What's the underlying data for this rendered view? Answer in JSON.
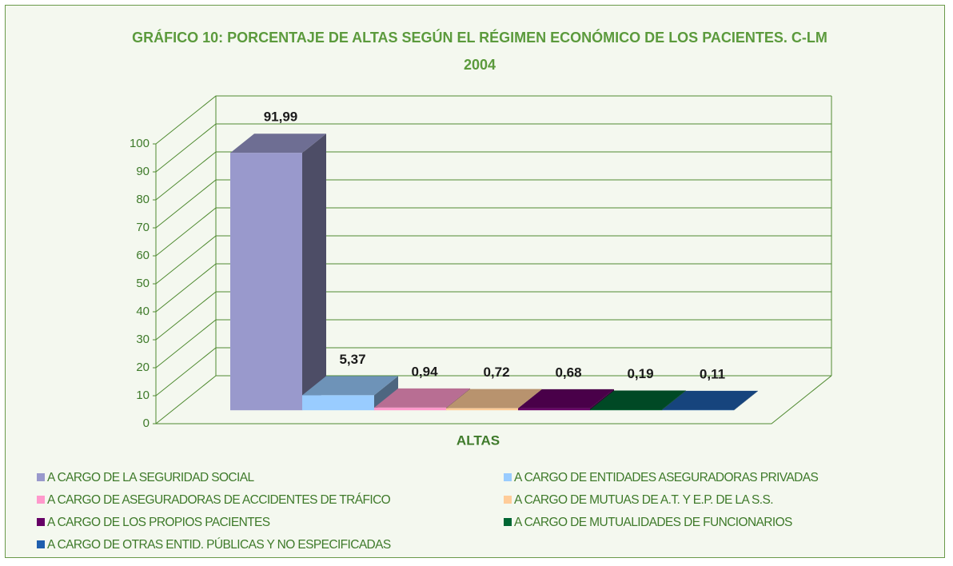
{
  "chart_data": {
    "type": "bar",
    "title": "GRÁFICO 10: PORCENTAJE DE ALTAS SEGÚN EL RÉGIMEN ECONÓMICO DE LOS PACIENTES. C-LM 2004",
    "categories": [
      "ALTAS"
    ],
    "series": [
      {
        "name": "A CARGO DE LA SEGURIDAD SOCIAL",
        "color": "#9999cc",
        "values": [
          91.99
        ],
        "value_labels": [
          "91,99"
        ]
      },
      {
        "name": "A CARGO DE ENTIDADES ASEGURADORAS PRIVADAS",
        "color": "#99ccff",
        "values": [
          5.37
        ],
        "value_labels": [
          "5,37"
        ]
      },
      {
        "name": "A CARGO DE ASEGURADORAS DE ACCIDENTES DE TRÁFICO",
        "color": "#ff99cc",
        "values": [
          0.94
        ],
        "value_labels": [
          "0,94"
        ]
      },
      {
        "name": "A CARGO DE MUTUAS  DE A.T. Y E.P. DE LA S.S.",
        "color": "#ffcc99",
        "values": [
          0.72
        ],
        "value_labels": [
          "0,72"
        ]
      },
      {
        "name": "A CARGO DE LOS PROPIOS PACIENTES",
        "color": "#660066",
        "values": [
          0.68
        ],
        "value_labels": [
          "0,68"
        ]
      },
      {
        "name": "A CARGO DE MUTUALIDADES DE FUNCIONARIOS",
        "color": "#006633",
        "values": [
          0.19
        ],
        "value_labels": [
          "0,19"
        ]
      },
      {
        "name": "A CARGO DE OTRAS ENTID. PÚBLICAS Y NO ESPECIFICADAS",
        "color": "#1f5fae",
        "values": [
          0.11
        ],
        "value_labels": [
          "0,11"
        ]
      }
    ],
    "ylim": [
      0,
      100
    ],
    "yticks": [
      0,
      10,
      20,
      30,
      40,
      50,
      60,
      70,
      80,
      90,
      100
    ],
    "grid": true
  }
}
